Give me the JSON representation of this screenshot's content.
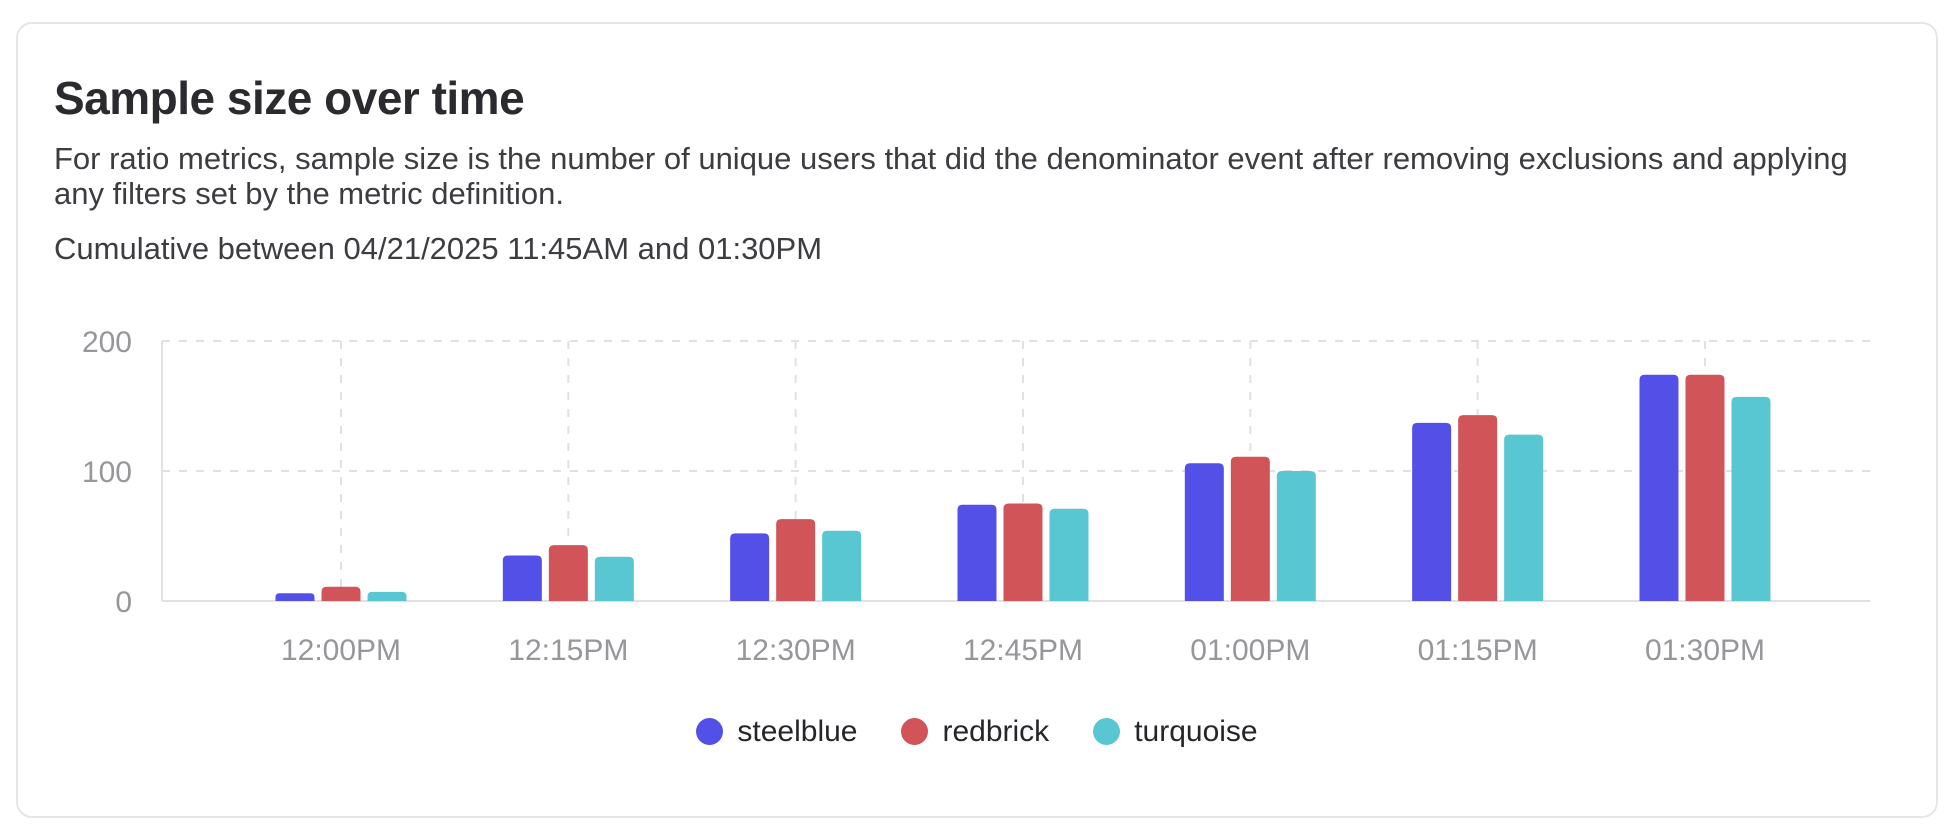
{
  "card": {
    "title": "Sample size over time",
    "description": "For ratio metrics, sample size is the number of unique users that did the denominator event after removing exclusions and applying any filters set by the metric definition.",
    "date_range": "Cumulative between 04/21/2025 11:45AM and 01:30PM"
  },
  "chart_data": {
    "type": "bar",
    "title": "Sample size over time",
    "categories": [
      "12:00PM",
      "12:15PM",
      "12:30PM",
      "12:45PM",
      "01:00PM",
      "01:15PM",
      "01:30PM"
    ],
    "series": [
      {
        "name": "steelblue",
        "color": "#5350E7",
        "values": [
          6,
          35,
          52,
          74,
          106,
          137,
          174
        ]
      },
      {
        "name": "redbrick",
        "color": "#D15459",
        "values": [
          11,
          43,
          63,
          75,
          111,
          143,
          174
        ]
      },
      {
        "name": "turquoise",
        "color": "#59C7D1",
        "values": [
          7,
          34,
          54,
          71,
          100,
          128,
          157
        ]
      }
    ],
    "ylim": [
      0,
      200
    ],
    "yticks": [
      0,
      100,
      200
    ],
    "xlabel": "",
    "ylabel": "",
    "grid": "dashed",
    "legend_position": "bottom"
  },
  "colors": {
    "grid": "#E1E1E4",
    "axis": "#E1E1E4",
    "tick_text": "#96969B",
    "title_text": "#2B2B2F",
    "body_text": "#3C3C41",
    "legend_text": "#26262A",
    "card_border": "#E6E6E9",
    "background": "#FFFFFF"
  }
}
